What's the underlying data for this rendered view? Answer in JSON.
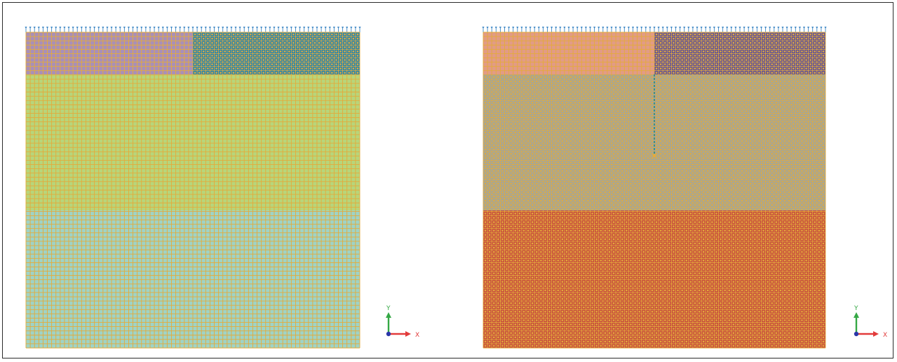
{
  "colors": {
    "mesh_line": "#e4ab3b",
    "load_arrow": "#3f88c5",
    "axis_x": "#e23b3b",
    "axis_y": "#35a845",
    "axis_z": "#2a36a8"
  },
  "panels": [
    {
      "id": "left",
      "layers": [
        {
          "name": "surface-layer-left-block",
          "fill": "#a98fb8",
          "node_dots": false
        },
        {
          "name": "surface-layer-right-block",
          "fill": "#1e83b3",
          "node_dots": true
        },
        {
          "name": "middle-layer",
          "fill": "#b8d57a",
          "node_dots": false
        },
        {
          "name": "bottom-layer",
          "fill": "#9fd3c6",
          "node_dots": false
        }
      ]
    },
    {
      "id": "right",
      "layers": [
        {
          "name": "surface-layer-left-block",
          "fill": "#e29b86",
          "node_dots": false
        },
        {
          "name": "surface-layer-right-block",
          "fill": "#5b4e9c",
          "node_dots": true
        },
        {
          "name": "middle-layer",
          "fill": "#9aa5a6",
          "node_dots": true
        },
        {
          "name": "bottom-layer",
          "fill": "#c64a3e",
          "node_dots": true
        }
      ]
    }
  ],
  "triad": {
    "x_label": "X",
    "y_label": "Y"
  }
}
